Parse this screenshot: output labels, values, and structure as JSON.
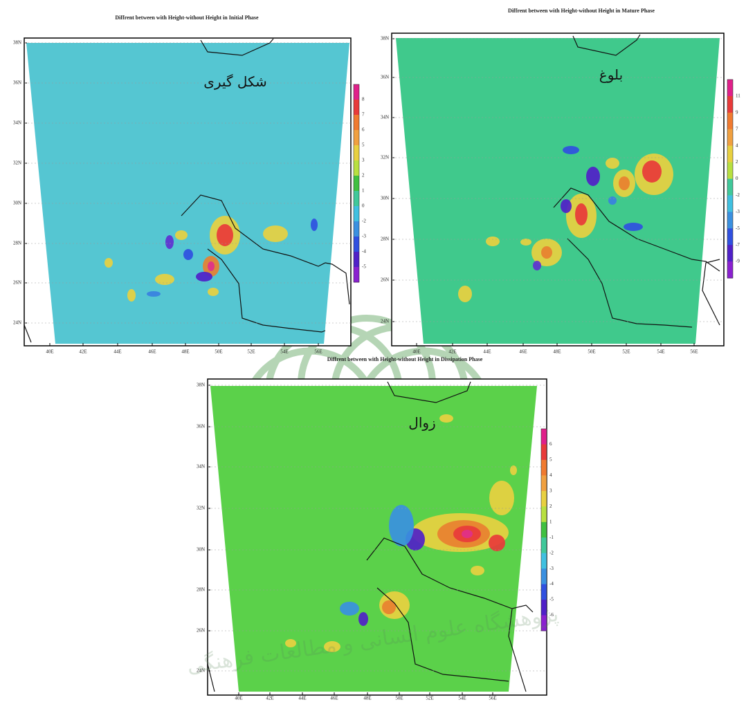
{
  "panels": [
    {
      "title": "Diffrent between with Height-without Height in Initial Phase",
      "phase_label": "شکل گیری",
      "yticks": [
        "38N",
        "36N",
        "34N",
        "32N",
        "30N",
        "28N",
        "26N",
        "24N"
      ],
      "xticks": [
        "40E",
        "42E",
        "44E",
        "46E",
        "48E",
        "50E",
        "52E",
        "54E",
        "56E"
      ],
      "colorbar": [
        8,
        7,
        6,
        5,
        3,
        2,
        1,
        0,
        -2,
        -3,
        -4,
        -5
      ]
    },
    {
      "title": "Diffrent between with Height-without Height in Mature Phase",
      "phase_label": "بلوغ",
      "yticks": [
        "38N",
        "36N",
        "34N",
        "32N",
        "30N",
        "28N",
        "26N",
        "24N"
      ],
      "xticks": [
        "40E",
        "42E",
        "44E",
        "46E",
        "48E",
        "50E",
        "52E",
        "54E",
        "56E"
      ],
      "colorbar": [
        11,
        9,
        7,
        4,
        2,
        0,
        -2,
        -3,
        -5,
        -7,
        -9
      ]
    },
    {
      "title": "Diffrent between with Height-without Height in Dissipation Phase",
      "phase_label": "زوال",
      "yticks": [
        "38N",
        "36N",
        "34N",
        "32N",
        "30N",
        "28N",
        "26N",
        "24N"
      ],
      "xticks": [
        "40E",
        "42E",
        "44E",
        "46E",
        "48E",
        "50E",
        "52E",
        "54E",
        "56E"
      ],
      "colorbar": [
        6,
        5,
        4,
        3,
        2,
        1,
        -1,
        -2,
        -3,
        -4,
        -5,
        -6
      ]
    }
  ],
  "watermark": "پژوهشگاه علوم انسانی و مطالعات فرهنگی"
}
